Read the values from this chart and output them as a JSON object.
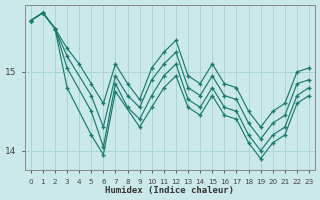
{
  "xlabel": "Humidex (Indice chaleur)",
  "background_color": "#cce9e9",
  "grid_color": "#aad4d4",
  "line_color": "#1a7a6e",
  "xlim": [
    -0.5,
    23.5
  ],
  "ylim": [
    13.75,
    15.85
  ],
  "yticks": [
    14,
    15
  ],
  "xticks": [
    0,
    1,
    2,
    3,
    4,
    5,
    6,
    7,
    8,
    9,
    10,
    11,
    12,
    13,
    14,
    15,
    16,
    17,
    18,
    19,
    20,
    21,
    22,
    23
  ],
  "series": [
    {
      "x": [
        0,
        1,
        2,
        3,
        4,
        5,
        6,
        7,
        8,
        9,
        10,
        11,
        12,
        13,
        14,
        15,
        16,
        17,
        18,
        19,
        20,
        21,
        22,
        23
      ],
      "y": [
        15.65,
        15.75,
        15.55,
        15.3,
        15.1,
        14.85,
        14.6,
        15.1,
        14.85,
        14.65,
        15.05,
        15.25,
        15.4,
        14.95,
        14.85,
        15.1,
        14.85,
        14.8,
        14.5,
        14.3,
        14.5,
        14.6,
        15.0,
        15.05
      ]
    },
    {
      "x": [
        0,
        1,
        2,
        3,
        5,
        6,
        7,
        8,
        9,
        10,
        11,
        12,
        13,
        14,
        15,
        16,
        17,
        18,
        19,
        20,
        21,
        22,
        23
      ],
      "y": [
        15.65,
        15.75,
        15.55,
        15.2,
        14.7,
        14.3,
        14.95,
        14.7,
        14.55,
        14.9,
        15.1,
        15.25,
        14.8,
        14.7,
        14.95,
        14.7,
        14.65,
        14.35,
        14.15,
        14.35,
        14.45,
        14.85,
        14.9
      ]
    },
    {
      "x": [
        0,
        1,
        2,
        3,
        5,
        6,
        7,
        8,
        9,
        10,
        11,
        12,
        13,
        14,
        15,
        16,
        17,
        18,
        19,
        20,
        21,
        22,
        23
      ],
      "y": [
        15.65,
        15.75,
        15.55,
        15.05,
        14.5,
        14.05,
        14.85,
        14.55,
        14.4,
        14.7,
        14.95,
        15.1,
        14.65,
        14.55,
        14.8,
        14.55,
        14.5,
        14.2,
        14.0,
        14.2,
        14.3,
        14.7,
        14.8
      ]
    },
    {
      "x": [
        0,
        1,
        2,
        3,
        5,
        6,
        7,
        9,
        10,
        11,
        12,
        13,
        14,
        15,
        16,
        17,
        18,
        19,
        20,
        21,
        22,
        23
      ],
      "y": [
        15.65,
        15.75,
        15.55,
        14.8,
        14.2,
        13.95,
        14.75,
        14.3,
        14.55,
        14.8,
        14.95,
        14.55,
        14.45,
        14.7,
        14.45,
        14.4,
        14.1,
        13.9,
        14.1,
        14.2,
        14.6,
        14.7
      ]
    }
  ]
}
